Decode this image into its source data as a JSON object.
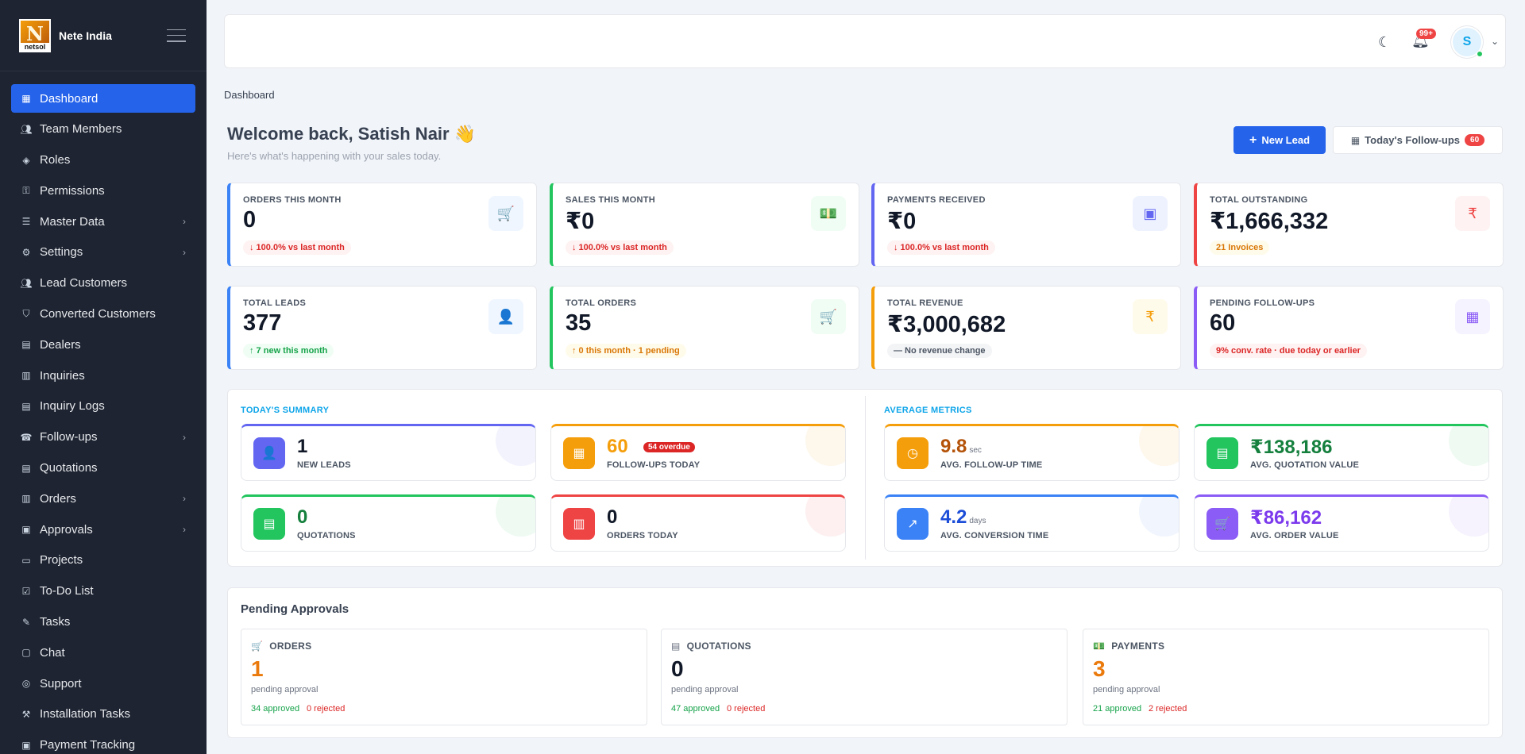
{
  "brand": {
    "logo_text": "netsol",
    "name": "Nete India"
  },
  "sidebar": {
    "items": [
      {
        "label": "Dashboard",
        "icon": "dashboard-icon",
        "active": true
      },
      {
        "label": "Team Members",
        "icon": "users-icon"
      },
      {
        "label": "Roles",
        "icon": "role-icon"
      },
      {
        "label": "Permissions",
        "icon": "key-icon"
      },
      {
        "label": "Master Data",
        "icon": "sliders-icon",
        "chevron": true
      },
      {
        "label": "Settings",
        "icon": "gear-icon",
        "chevron": true
      },
      {
        "label": "Lead Customers",
        "icon": "people-icon"
      },
      {
        "label": "Converted Customers",
        "icon": "shield-icon"
      },
      {
        "label": "Dealers",
        "icon": "store-icon"
      },
      {
        "label": "Inquiries",
        "icon": "clipboard-icon"
      },
      {
        "label": "Inquiry Logs",
        "icon": "log-icon"
      },
      {
        "label": "Follow-ups",
        "icon": "phone-icon",
        "chevron": true
      },
      {
        "label": "Quotations",
        "icon": "document-icon"
      },
      {
        "label": "Orders",
        "icon": "orders-icon",
        "chevron": true
      },
      {
        "label": "Approvals",
        "icon": "approval-icon",
        "chevron": true
      },
      {
        "label": "Projects",
        "icon": "folder-icon"
      },
      {
        "label": "To-Do List",
        "icon": "checklist-icon"
      },
      {
        "label": "Tasks",
        "icon": "tasks-icon"
      },
      {
        "label": "Chat",
        "icon": "chat-icon"
      },
      {
        "label": "Support",
        "icon": "support-icon"
      },
      {
        "label": "Installation Tasks",
        "icon": "wrench-icon"
      },
      {
        "label": "Payment Tracking",
        "icon": "payment-icon"
      }
    ]
  },
  "topbar": {
    "notification_count": "99+",
    "avatar_initial": "S"
  },
  "breadcrumb": "Dashboard",
  "welcome": {
    "title": "Welcome back, Satish Nair 👋",
    "subtitle": "Here's what's happening with your sales today."
  },
  "actions": {
    "new_lead": "New Lead",
    "followups": "Today's Follow-ups",
    "followups_count": "60"
  },
  "stats": [
    {
      "label": "ORDERS THIS MONTH",
      "value": "0",
      "pill": "↓ 100.0% vs last month",
      "pill_style": "red",
      "accent": "#3b82f6",
      "icon": "cart-icon",
      "icon_glyph": "🛒",
      "icon_bg": "#eff6ff",
      "icon_color": "#3b82f6"
    },
    {
      "label": "SALES THIS MONTH",
      "value": "₹0",
      "pill": "↓ 100.0% vs last month",
      "pill_style": "red",
      "accent": "#22c55e",
      "icon": "cash-icon",
      "icon_glyph": "💵",
      "icon_bg": "#f0fdf4",
      "icon_color": "#22c55e"
    },
    {
      "label": "PAYMENTS RECEIVED",
      "value": "₹0",
      "pill": "↓ 100.0% vs last month",
      "pill_style": "red",
      "accent": "#6366f1",
      "icon": "wallet-icon",
      "icon_glyph": "▣",
      "icon_bg": "#eef2ff",
      "icon_color": "#6366f1"
    },
    {
      "label": "TOTAL OUTSTANDING",
      "value": "₹1,666,332",
      "pill": "21 Invoices",
      "pill_style": "yellow",
      "accent": "#ef4444",
      "icon": "rupee-icon",
      "icon_glyph": "₹",
      "icon_bg": "#fef2f2",
      "icon_color": "#ef4444"
    },
    {
      "label": "TOTAL LEADS",
      "value": "377",
      "pill": "↑ 7 new this month",
      "pill_style": "green",
      "accent": "#3b82f6",
      "icon": "add-user-icon",
      "icon_glyph": "👤",
      "icon_bg": "#eff6ff",
      "icon_color": "#3b82f6"
    },
    {
      "label": "TOTAL ORDERS",
      "value": "35",
      "pill": "↑ 0 this month · 1 pending",
      "pill_style": "yellow",
      "accent": "#22c55e",
      "icon": "cart-icon",
      "icon_glyph": "🛒",
      "icon_bg": "#f0fdf4",
      "icon_color": "#22c55e"
    },
    {
      "label": "TOTAL REVENUE",
      "value": "₹3,000,682",
      "pill": "— No revenue change",
      "pill_style": "gray",
      "accent": "#f59e0b",
      "icon": "rupee-icon",
      "icon_glyph": "₹",
      "icon_bg": "#fffbeb",
      "icon_color": "#f59e0b"
    },
    {
      "label": "PENDING FOLLOW-UPS",
      "value": "60",
      "pill": "9% conv. rate · due today or earlier",
      "pill_style": "red",
      "accent": "#8b5cf6",
      "icon": "calendar-icon",
      "icon_glyph": "▦",
      "icon_bg": "#f5f3ff",
      "icon_color": "#8b5cf6"
    }
  ],
  "summary": {
    "today_title": "TODAY'S SUMMARY",
    "avg_title": "AVERAGE METRICS",
    "today": [
      {
        "value": "1",
        "label": "NEW LEADS",
        "accent": "#6366f1",
        "icon": "add-user-icon",
        "glyph": "👤",
        "value_color": "#111827"
      },
      {
        "value": "60",
        "label": "FOLLOW-UPS TODAY",
        "accent": "#f59e0b",
        "icon": "calendar-icon",
        "glyph": "▦",
        "value_color": "#f59e0b",
        "badge": "54 overdue"
      },
      {
        "value": "0",
        "label": "QUOTATIONS",
        "accent": "#22c55e",
        "icon": "document-icon",
        "glyph": "▤",
        "value_color": "#15803d"
      },
      {
        "value": "0",
        "label": "ORDERS TODAY",
        "accent": "#ef4444",
        "icon": "clipboard-icon",
        "glyph": "▥",
        "value_color": "#111827"
      }
    ],
    "average": [
      {
        "value": "9.8",
        "unit": "sec",
        "label": "AVG. FOLLOW-UP TIME",
        "accent": "#f59e0b",
        "icon": "clock-icon",
        "glyph": "◷",
        "value_color": "#b45309"
      },
      {
        "value": "₹138,186",
        "unit": "",
        "label": "AVG. QUOTATION VALUE",
        "accent": "#22c55e",
        "icon": "receipt-icon",
        "glyph": "▤",
        "value_color": "#15803d"
      },
      {
        "value": "4.2",
        "unit": "days",
        "label": "AVG. CONVERSION TIME",
        "accent": "#3b82f6",
        "icon": "trend-up-icon",
        "glyph": "↗",
        "value_color": "#1d4ed8"
      },
      {
        "value": "₹86,162",
        "unit": "",
        "label": "AVG. ORDER VALUE",
        "accent": "#8b5cf6",
        "icon": "cart-icon",
        "glyph": "🛒",
        "value_color": "#7c3aed"
      }
    ]
  },
  "approvals": {
    "title": "Pending Approvals",
    "cards": [
      {
        "label": "ORDERS",
        "icon": "cart-icon",
        "glyph": "🛒",
        "value": "1",
        "value_color": "#ea7a0c",
        "sub": "pending approval",
        "approved": "34 approved",
        "rejected": "0 rejected"
      },
      {
        "label": "QUOTATIONS",
        "icon": "document-icon",
        "glyph": "▤",
        "value": "0",
        "value_color": "#111827",
        "sub": "pending approval",
        "approved": "47 approved",
        "rejected": "0 rejected"
      },
      {
        "label": "PAYMENTS",
        "icon": "cash-icon",
        "glyph": "💵",
        "value": "3",
        "value_color": "#ea7a0c",
        "sub": "pending approval",
        "approved": "21 approved",
        "rejected": "2 rejected"
      }
    ]
  }
}
